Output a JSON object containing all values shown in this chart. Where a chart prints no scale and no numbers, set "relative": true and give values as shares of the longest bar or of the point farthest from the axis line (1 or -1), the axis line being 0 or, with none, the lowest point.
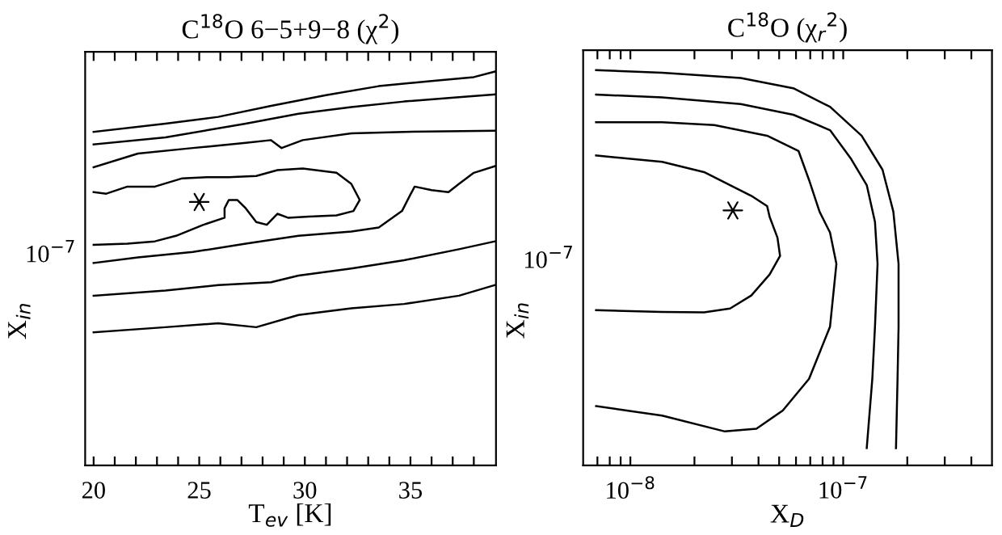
{
  "chart_data": [
    {
      "type": "line",
      "title": "C$^{18}$O 6−5+9−8 (χ$^{2}$)",
      "xlabel": "T$_{ev}$ [K]",
      "ylabel": "X$_{in}$",
      "relative": true,
      "annotations": [
        "10$^{−7}$"
      ],
      "xlim": [
        19.6,
        39.05
      ],
      "xticks": [
        20,
        {
          "value": 21,
          "label": null
        },
        {
          "value": 22,
          "label": null
        },
        {
          "value": 23,
          "label": null
        },
        {
          "value": 24,
          "label": null
        },
        25,
        {
          "value": 26,
          "label": null
        },
        {
          "value": 27,
          "label": null
        },
        {
          "value": 28,
          "label": null
        },
        {
          "value": 29,
          "label": null
        },
        30,
        {
          "value": 31,
          "label": null
        },
        {
          "value": 32,
          "label": null
        },
        {
          "value": 33,
          "label": null
        },
        {
          "value": 34,
          "label": null
        },
        35,
        {
          "value": 36,
          "label": null
        },
        {
          "value": 37,
          "label": null
        },
        {
          "value": 38,
          "label": null
        }
      ],
      "series": [
        {
          "color": "#000000",
          "x": [
            20,
            23.4,
            25.9,
            28.4,
            31.0,
            33.5,
            36.0,
            38.0,
            39.0
          ],
          "values": [
            0.847,
            0.868,
            0.885,
            0.913,
            0.94,
            0.963,
            0.976,
            0.986,
            1
          ]
        },
        {
          "color": "#000000",
          "x": [
            20,
            23.4,
            27.2,
            29.7,
            32.2,
            34.7,
            37.3,
            39.0
          ],
          "values": [
            0.815,
            0.833,
            0.868,
            0.893,
            0.91,
            0.924,
            0.935,
            0.942
          ]
        },
        {
          "color": "#000000",
          "x": [
            20,
            22.1,
            24.7,
            27.2,
            28.4,
            28.9,
            29.9,
            32.2,
            34.7,
            39.0
          ],
          "values": [
            0.757,
            0.792,
            0.806,
            0.819,
            0.826,
            0.806,
            0.826,
            0.843,
            0.847,
            0.85
          ]
        },
        {
          "color": "#000000",
          "x": [
            20,
            20.6,
            21.6,
            22.9,
            24.2,
            25.4,
            26.4,
            27.7,
            28.7,
            29.9,
            31.5,
            32.2,
            32.6,
            32.3,
            31.5,
            30.2,
            29.2,
            28.7,
            28.2,
            27.7,
            27.2,
            26.8,
            26.4,
            26.2,
            26.2,
            25.2,
            23.9,
            22.9,
            21.6,
            20
          ],
          "values": [
            0.694,
            0.69,
            0.708,
            0.708,
            0.729,
            0.732,
            0.732,
            0.735,
            0.75,
            0.754,
            0.743,
            0.715,
            0.674,
            0.646,
            0.635,
            0.632,
            0.629,
            0.639,
            0.611,
            0.618,
            0.653,
            0.674,
            0.674,
            0.653,
            0.629,
            0.611,
            0.583,
            0.569,
            0.563,
            0.56
          ]
        },
        {
          "color": "#000000",
          "x": [
            20,
            22.1,
            24.7,
            27.2,
            29.7,
            32.2,
            33.5,
            34.6,
            35.0,
            35.2,
            36.0,
            36.8,
            37.3,
            38.0,
            39.0
          ],
          "values": [
            0.514,
            0.528,
            0.542,
            0.563,
            0.583,
            0.594,
            0.604,
            0.646,
            0.688,
            0.708,
            0.699,
            0.694,
            0.715,
            0.743,
            0.76
          ]
        },
        {
          "color": "#000000",
          "x": [
            20,
            23.4,
            25.9,
            28.4,
            29.7,
            32.2,
            34.7,
            37.3,
            39.0
          ],
          "values": [
            0.431,
            0.444,
            0.458,
            0.465,
            0.482,
            0.5,
            0.521,
            0.549,
            0.569
          ]
        },
        {
          "color": "#000000",
          "x": [
            20,
            23.4,
            25.9,
            27.7,
            29.7,
            32.2,
            34.7,
            37.3,
            39.0
          ],
          "values": [
            0.338,
            0.351,
            0.361,
            0.351,
            0.382,
            0.399,
            0.41,
            0.431,
            0.458
          ]
        },
        {
          "type": "scatter",
          "color": "#000000",
          "marker": "cross",
          "x": [
            25
          ],
          "values": [
            0.669
          ]
        }
      ]
    },
    {
      "type": "line",
      "title": "C$^{18}$O (χ$_{r}$$^{2}$)",
      "xlabel": "X$_{D}$",
      "ylabel": "X$_{in}$",
      "log": "x",
      "relative": true,
      "annotations": [
        "10$^{−7}$"
      ],
      "xlim": [
        6e-09,
        5e-07
      ],
      "xticks": [
        {
          "value": 7e-09,
          "label": null
        },
        {
          "value": 8e-09,
          "label": null
        },
        {
          "value": 9e-09,
          "label": null
        },
        {
          "value": 1e-08,
          "label": "10$^{−8}$"
        },
        {
          "value": 2e-08,
          "label": null
        },
        {
          "value": 3e-08,
          "label": null
        },
        {
          "value": 4e-08,
          "label": null
        },
        {
          "value": 5e-08,
          "label": null
        },
        {
          "value": 6e-08,
          "label": null
        },
        {
          "value": 7e-08,
          "label": null
        },
        {
          "value": 8e-08,
          "label": null
        },
        {
          "value": 9e-08,
          "label": null
        },
        {
          "value": 1e-07,
          "label": "10$^{−7}$"
        },
        {
          "value": 2e-07,
          "label": null
        },
        {
          "value": 3e-07,
          "label": null
        },
        {
          "value": 4e-07,
          "label": null
        }
      ],
      "series": [
        {
          "color": "#000000",
          "x": [
            6.9e-09,
            1.41e-08,
            2.22e-08,
            2.94e-08,
            3.7e-08,
            4.51e-08,
            5.05e-08,
            4.91e-08,
            4.51e-08,
            4.39e-08,
            3.7e-08,
            2.94e-08,
            2.22e-08,
            1.41e-08,
            6.9e-09
          ],
          "values": [
            0.393,
            0.388,
            0.387,
            0.397,
            0.43,
            0.483,
            0.53,
            0.576,
            0.629,
            0.656,
            0.682,
            0.709,
            0.742,
            0.768,
            0.784
          ]
        },
        {
          "color": "#000000",
          "x": [
            6.9e-09,
            1.41e-08,
            2.78e-08,
            3.91e-08,
            5.2e-08,
            6.91e-08,
            8.67e-08,
            9.29e-08,
            8.67e-08,
            7.74e-08,
            6.91e-08,
            6.17e-08,
            4.39e-08,
            2.48e-08,
            1.41e-08,
            6.9e-09
          ],
          "values": [
            0.15,
            0.126,
            0.086,
            0.093,
            0.139,
            0.219,
            0.351,
            0.51,
            0.589,
            0.642,
            0.722,
            0.795,
            0.834,
            0.861,
            0.868,
            0.868
          ]
        },
        {
          "color": "#000000",
          "x": [
            6.9e-09,
            1.41e-08,
            3.3e-08,
            5.83e-08,
            8.67e-08,
            1.09e-07,
            1.29e-07,
            1.41e-07,
            1.45e-07,
            1.41e-07,
            1.37e-07,
            1.29e-07
          ],
          "values": [
            0.938,
            0.931,
            0.914,
            0.887,
            0.848,
            0.775,
            0.709,
            0.616,
            0.51,
            0.351,
            0.219,
            0.044
          ]
        },
        {
          "color": "#000000",
          "x": [
            6.9e-09,
            1.41e-08,
            3.3e-08,
            5.83e-08,
            8.67e-08,
            1.22e-07,
            1.53e-07,
            1.72e-07,
            1.82e-07,
            1.82e-07,
            1.8e-07,
            1.77e-07
          ],
          "values": [
            1,
            0.993,
            0.98,
            0.954,
            0.907,
            0.834,
            0.748,
            0.642,
            0.51,
            0.351,
            0.219,
            0.044
          ]
        },
        {
          "type": "scatter",
          "color": "#000000",
          "marker": "cross",
          "x": [
            3.03e-08
          ],
          "values": [
            0.645
          ]
        }
      ]
    }
  ]
}
